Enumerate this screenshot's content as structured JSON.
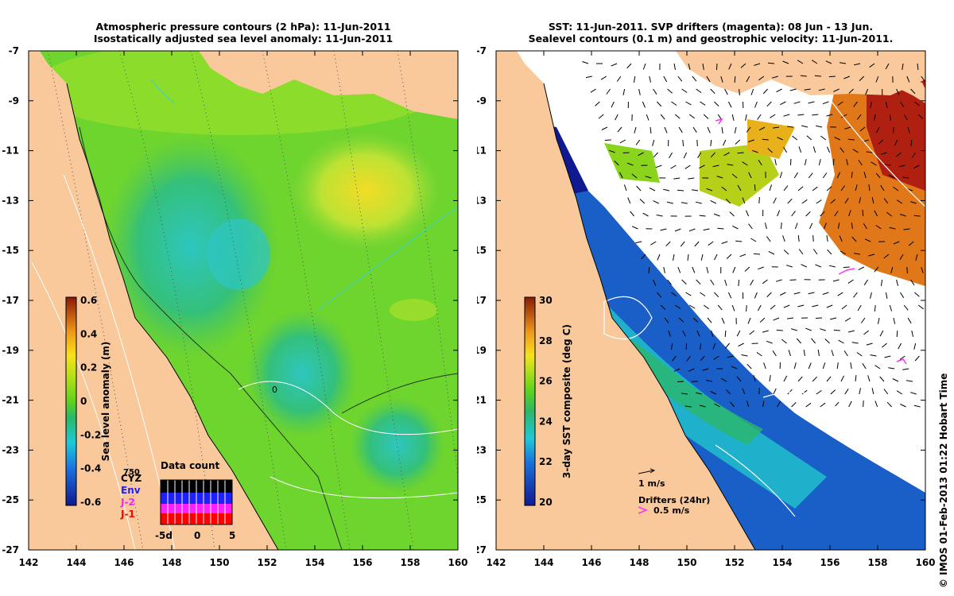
{
  "left_panel": {
    "title_line1": "Atmospheric pressure contours (2 hPa): 11-Jun-2011",
    "title_line2": "Isostatically adjusted sea level anomaly: 11-Jun-2011",
    "x_ticks": [
      "142",
      "144",
      "146",
      "148",
      "150",
      "152",
      "154",
      "156",
      "158",
      "160"
    ],
    "y_ticks": [
      "-7",
      "-9",
      "-11",
      "-13",
      "-15",
      "-17",
      "-19",
      "-21",
      "-23",
      "-25",
      "-27"
    ],
    "colorbar": {
      "label": "Sea level anomaly (m)",
      "ticks": [
        "0.6",
        "0.4",
        "0.2",
        "0",
        "-0.2",
        "-0.4",
        "-0.6"
      ],
      "range": [
        -0.6,
        0.6
      ]
    },
    "inset": {
      "title": "Data count",
      "y_tick": "750",
      "x_ticks": [
        "-5d",
        "0",
        "5"
      ],
      "satellites": [
        {
          "label": "CYZ",
          "color": "#000000"
        },
        {
          "label": "Env",
          "color": "#2020ff"
        },
        {
          "label": "J-2",
          "color": "#ff20ff"
        },
        {
          "label": "J-1",
          "color": "#ff0000"
        }
      ]
    },
    "contour_label": "0"
  },
  "right_panel": {
    "title_line1": "SST: 11-Jun-2011. SVP drifters (magenta): 08 Jun - 13 Jun.",
    "title_line2": "Sealevel contours (0.1 m) and geostrophic velocity: 11-Jun-2011.",
    "x_ticks": [
      "142",
      "144",
      "146",
      "148",
      "150",
      "152",
      "154",
      "156",
      "158",
      "160"
    ],
    "y_ticks": [
      "-7",
      "-9",
      "-11",
      "-13",
      "-15",
      "-17",
      "-19",
      "-21",
      "-23",
      "-25",
      "-27"
    ],
    "colorbar": {
      "label": "3-day SST composite (deg C)",
      "ticks": [
        "30",
        "28",
        "26",
        "24",
        "22",
        "20"
      ],
      "range": [
        20,
        30
      ]
    },
    "velocity_key": "1 m/s",
    "drifters_key": "Drifters (24hr)",
    "drifters_speed": "0.5 m/s"
  },
  "credit": "© IMOS 01-Feb-2013 01:22 Hobart Time",
  "colors": {
    "land": "#f9c89b",
    "sla_background": "#6ed42e",
    "sst_background": "#ffffff",
    "drifter": "#ff33ff"
  }
}
